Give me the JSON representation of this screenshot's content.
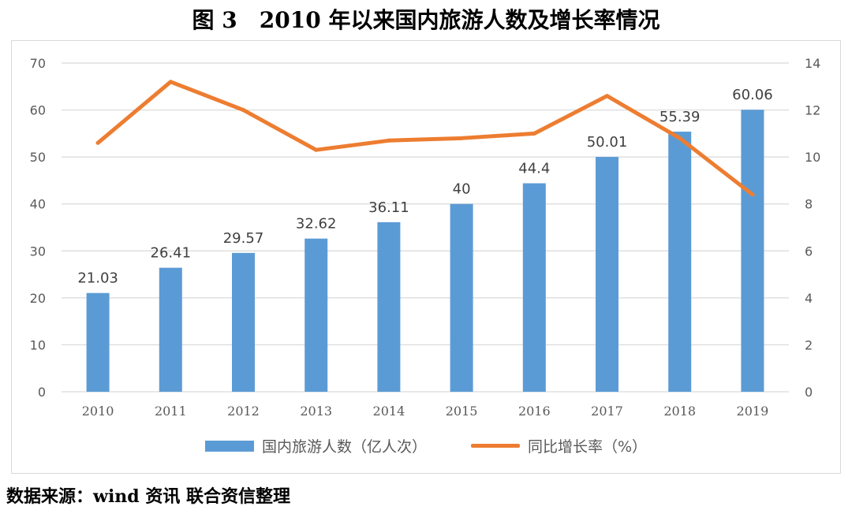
{
  "title": "图 3　2010 年以来国内旅游人数及增长率情况",
  "source": "数据来源：wind 资讯  联合资信整理",
  "colors": {
    "bar": "#5b9bd5",
    "line": "#ed7d31",
    "grid": "#d9d9d9",
    "axis_text": "#595959"
  },
  "chart_data": {
    "type": "bar",
    "categories": [
      "2010",
      "2011",
      "2012",
      "2013",
      "2014",
      "2015",
      "2016",
      "2017",
      "2018",
      "2019"
    ],
    "series": [
      {
        "name": "国内旅游人数（亿人次）",
        "type": "bar",
        "axis": "left",
        "values": [
          21.03,
          26.41,
          29.57,
          32.62,
          36.11,
          40,
          44.4,
          50.01,
          55.39,
          60.06
        ],
        "labels": [
          "21.03",
          "26.41",
          "29.57",
          "32.62",
          "36.11",
          "40",
          "44.4",
          "50.01",
          "55.39",
          "60.06"
        ]
      },
      {
        "name": "同比增长率（%）",
        "type": "line",
        "axis": "right",
        "values": [
          10.6,
          13.2,
          12.0,
          10.3,
          10.7,
          10.8,
          11.0,
          12.6,
          10.8,
          8.4
        ]
      }
    ],
    "y_left": {
      "min": 0,
      "max": 70,
      "ticks": [
        "0",
        "10",
        "20",
        "30",
        "40",
        "50",
        "60",
        "70"
      ]
    },
    "y_right": {
      "min": 0,
      "max": 14,
      "ticks": [
        "0",
        "2",
        "4",
        "6",
        "8",
        "10",
        "12",
        "14"
      ]
    },
    "grid": true,
    "legend_position": "bottom"
  }
}
